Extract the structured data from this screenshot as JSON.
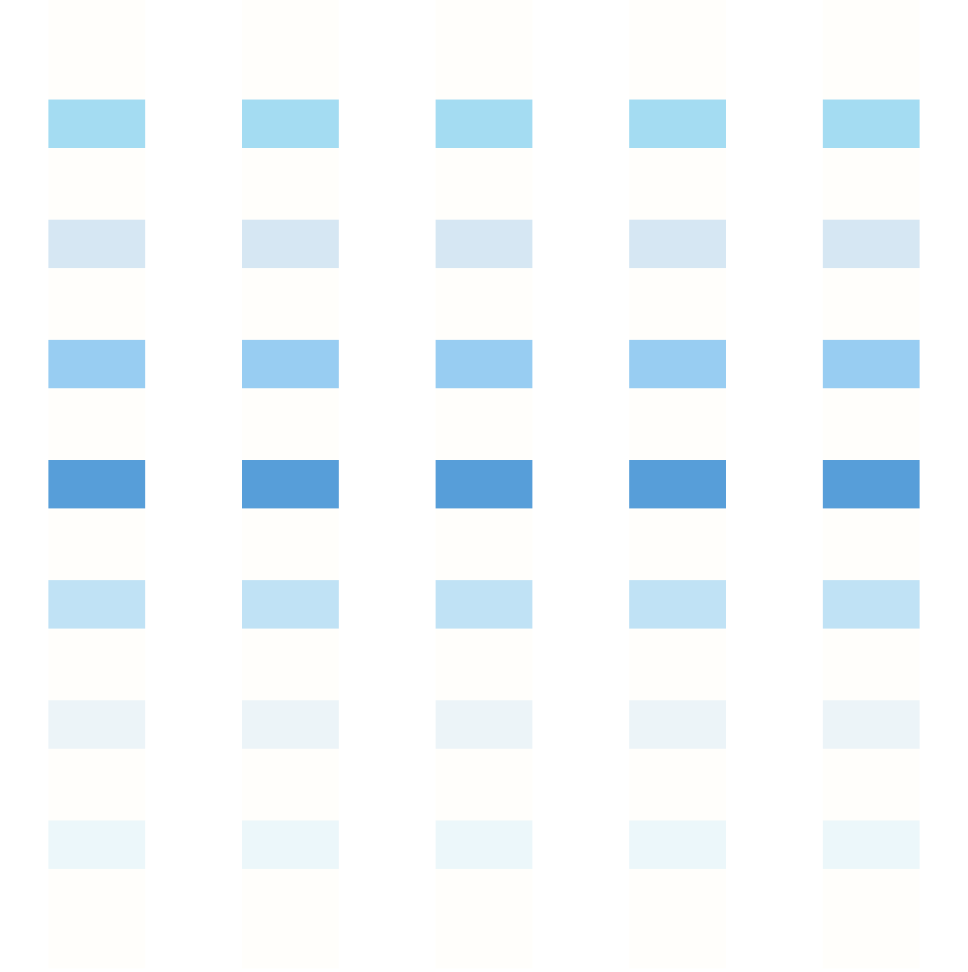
{
  "grid": {
    "column_count": 5,
    "background_color": "#ffffff",
    "stripe_color": "#fffefb",
    "rows": [
      {
        "color": "#fffefb"
      },
      {
        "color": "#a4dcf2"
      },
      {
        "color": "#d6e7f3"
      },
      {
        "color": "#98cdf2"
      },
      {
        "color": "#579ed9"
      },
      {
        "color": "#c0e2f5"
      },
      {
        "color": "#ecf4f8"
      },
      {
        "color": "#ecf7fa"
      },
      {
        "color": "#fffefb"
      }
    ]
  }
}
